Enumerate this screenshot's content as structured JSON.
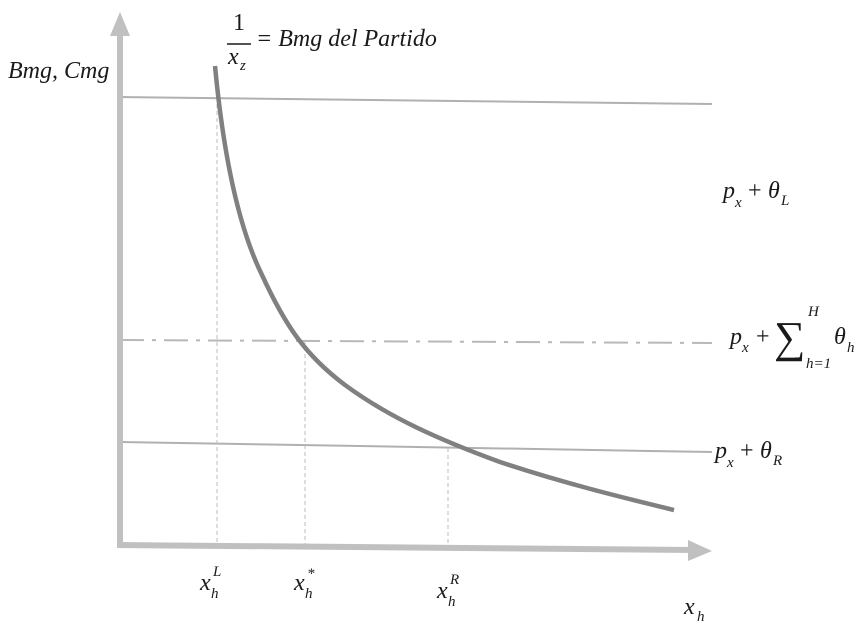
{
  "axes": {
    "y_label": "Bmg, Cmg",
    "x_label": {
      "base": "x",
      "sub": "h"
    }
  },
  "curve_label": {
    "numerator": "1",
    "denominator": {
      "base": "x",
      "sub": "z"
    },
    "text": "= Bmg del Partido"
  },
  "line_labels": {
    "theta_L": {
      "base": "p",
      "sub": "x",
      "op": "+",
      "symbol": "θ",
      "symbol_sub": "L"
    },
    "sum": {
      "base": "p",
      "sub": "x",
      "op": "+",
      "sigma": "∑",
      "upper": "H",
      "lower": "h=1",
      "symbol": "θ",
      "symbol_sub": "h"
    },
    "theta_R": {
      "base": "p",
      "sub": "x",
      "op": "+",
      "symbol": "θ",
      "symbol_sub": "R"
    }
  },
  "ticks": [
    {
      "base": "x",
      "sub": "h",
      "sup": "L"
    },
    {
      "base": "x",
      "sub": "h",
      "sup": "*"
    },
    {
      "base": "x",
      "sub": "h",
      "sup": "R"
    }
  ]
}
